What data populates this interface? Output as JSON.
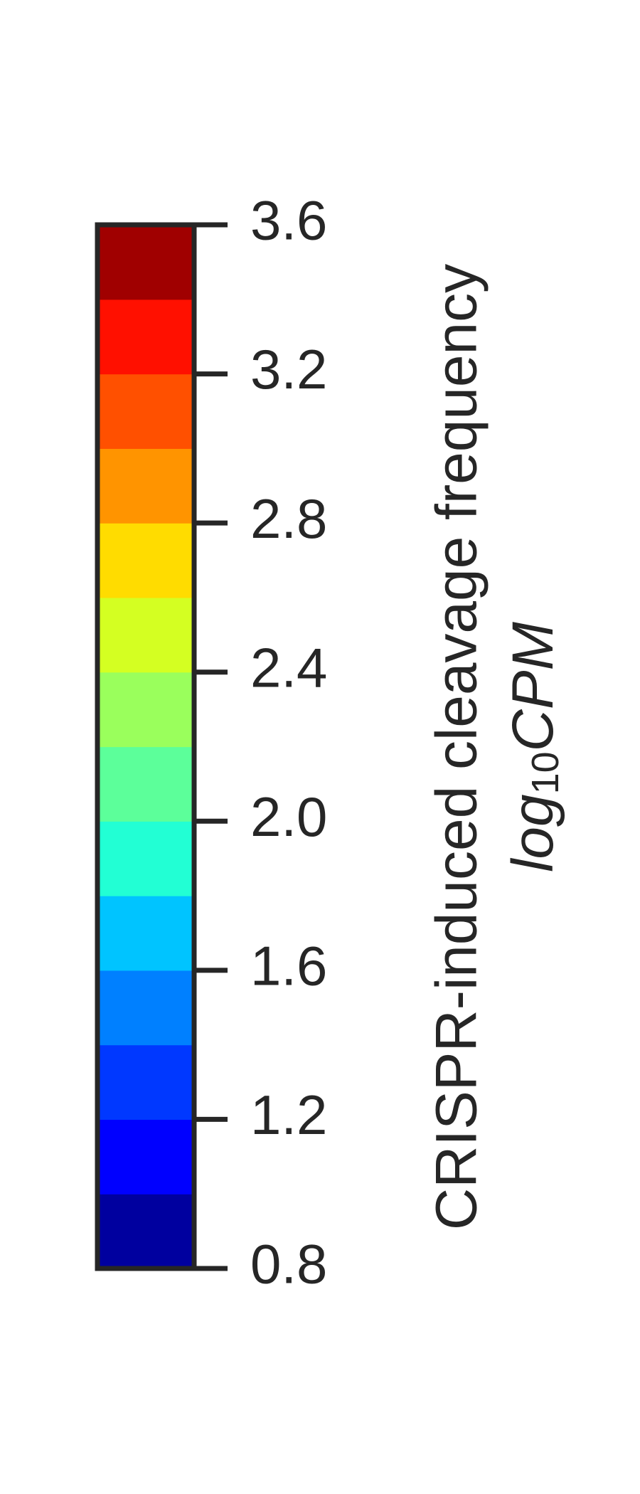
{
  "chart_data": {
    "type": "heatmap",
    "colorbar": true,
    "orientation": "vertical",
    "title": "",
    "label": "CRISPR-induced cleavage frequency",
    "unit": {
      "prefix": "log",
      "subscript": "10",
      "suffix": "CPM"
    },
    "range": [
      0.8,
      3.6
    ],
    "ticks": [
      0.8,
      1.2,
      1.6,
      2.0,
      2.4,
      2.8,
      3.2,
      3.6
    ],
    "tick_labels": [
      "0.8",
      "1.2",
      "1.6",
      "2.0",
      "2.4",
      "2.8",
      "3.2",
      "3.6"
    ],
    "bins": [
      {
        "from": 0.8,
        "to": 1.0,
        "color": "#00009f"
      },
      {
        "from": 1.0,
        "to": 1.2,
        "color": "#0000ff"
      },
      {
        "from": 1.2,
        "to": 1.4,
        "color": "#0038ff"
      },
      {
        "from": 1.4,
        "to": 1.6,
        "color": "#0080ff"
      },
      {
        "from": 1.6,
        "to": 1.8,
        "color": "#00c4ff"
      },
      {
        "from": 1.8,
        "to": 2.0,
        "color": "#22ffd4"
      },
      {
        "from": 2.0,
        "to": 2.2,
        "color": "#5cff9a"
      },
      {
        "from": 2.2,
        "to": 2.4,
        "color": "#9aff5c"
      },
      {
        "from": 2.4,
        "to": 2.6,
        "color": "#d4ff22"
      },
      {
        "from": 2.6,
        "to": 2.8,
        "color": "#ffdc00"
      },
      {
        "from": 2.8,
        "to": 3.0,
        "color": "#ff9400"
      },
      {
        "from": 3.0,
        "to": 3.2,
        "color": "#ff5000"
      },
      {
        "from": 3.2,
        "to": 3.4,
        "color": "#ff1000"
      },
      {
        "from": 3.4,
        "to": 3.6,
        "color": "#a00000"
      }
    ],
    "frame_color": "#262626",
    "text_color": "#262626"
  }
}
